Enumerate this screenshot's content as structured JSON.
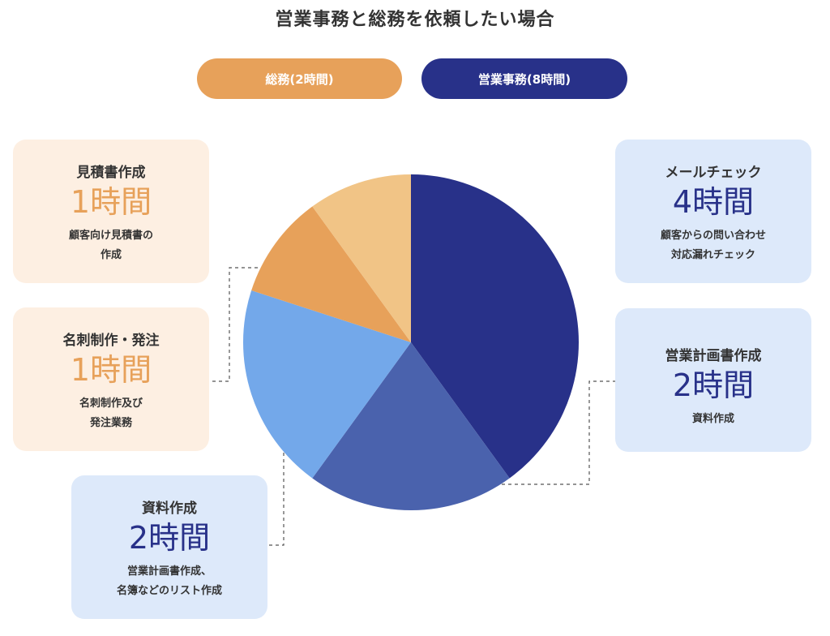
{
  "title": "営業事務と総務を依頼したい場合",
  "legend": [
    {
      "label": "総務(2時間)",
      "color": "#e7a15a"
    },
    {
      "label": "営業事務(8時間)",
      "color": "#283189"
    }
  ],
  "cards": {
    "mitsumori": {
      "title": "見積書作成",
      "hours": "1時間",
      "desc": "顧客向け見積書の\n作成"
    },
    "meishi": {
      "title": "名刺制作・発注",
      "hours": "1時間",
      "desc": "名刺制作及び\n発注業務"
    },
    "shiryo": {
      "title": "資料作成",
      "hours": "2時間",
      "desc": "営業計画書作成、\n名簿などのリスト作成"
    },
    "mail": {
      "title": "メールチェック",
      "hours": "4時間",
      "desc": "顧客からの問い合わせ\n対応漏れチェック"
    },
    "keikaku": {
      "title": "営業計画書作成",
      "hours": "2時間",
      "desc": "資料作成"
    }
  },
  "chart_data": {
    "type": "pie",
    "unit": "時間",
    "total": 10,
    "slices": [
      {
        "label": "メールチェック",
        "value": 4,
        "color": "#283189"
      },
      {
        "label": "営業計画書作成",
        "value": 2,
        "color": "#4a62ad"
      },
      {
        "label": "資料作成",
        "value": 2,
        "color": "#73a8ea"
      },
      {
        "label": "名刺制作・発注",
        "value": 1,
        "color": "#e7a15a"
      },
      {
        "label": "見積書作成",
        "value": 1,
        "color": "#f1c486"
      }
    ]
  }
}
